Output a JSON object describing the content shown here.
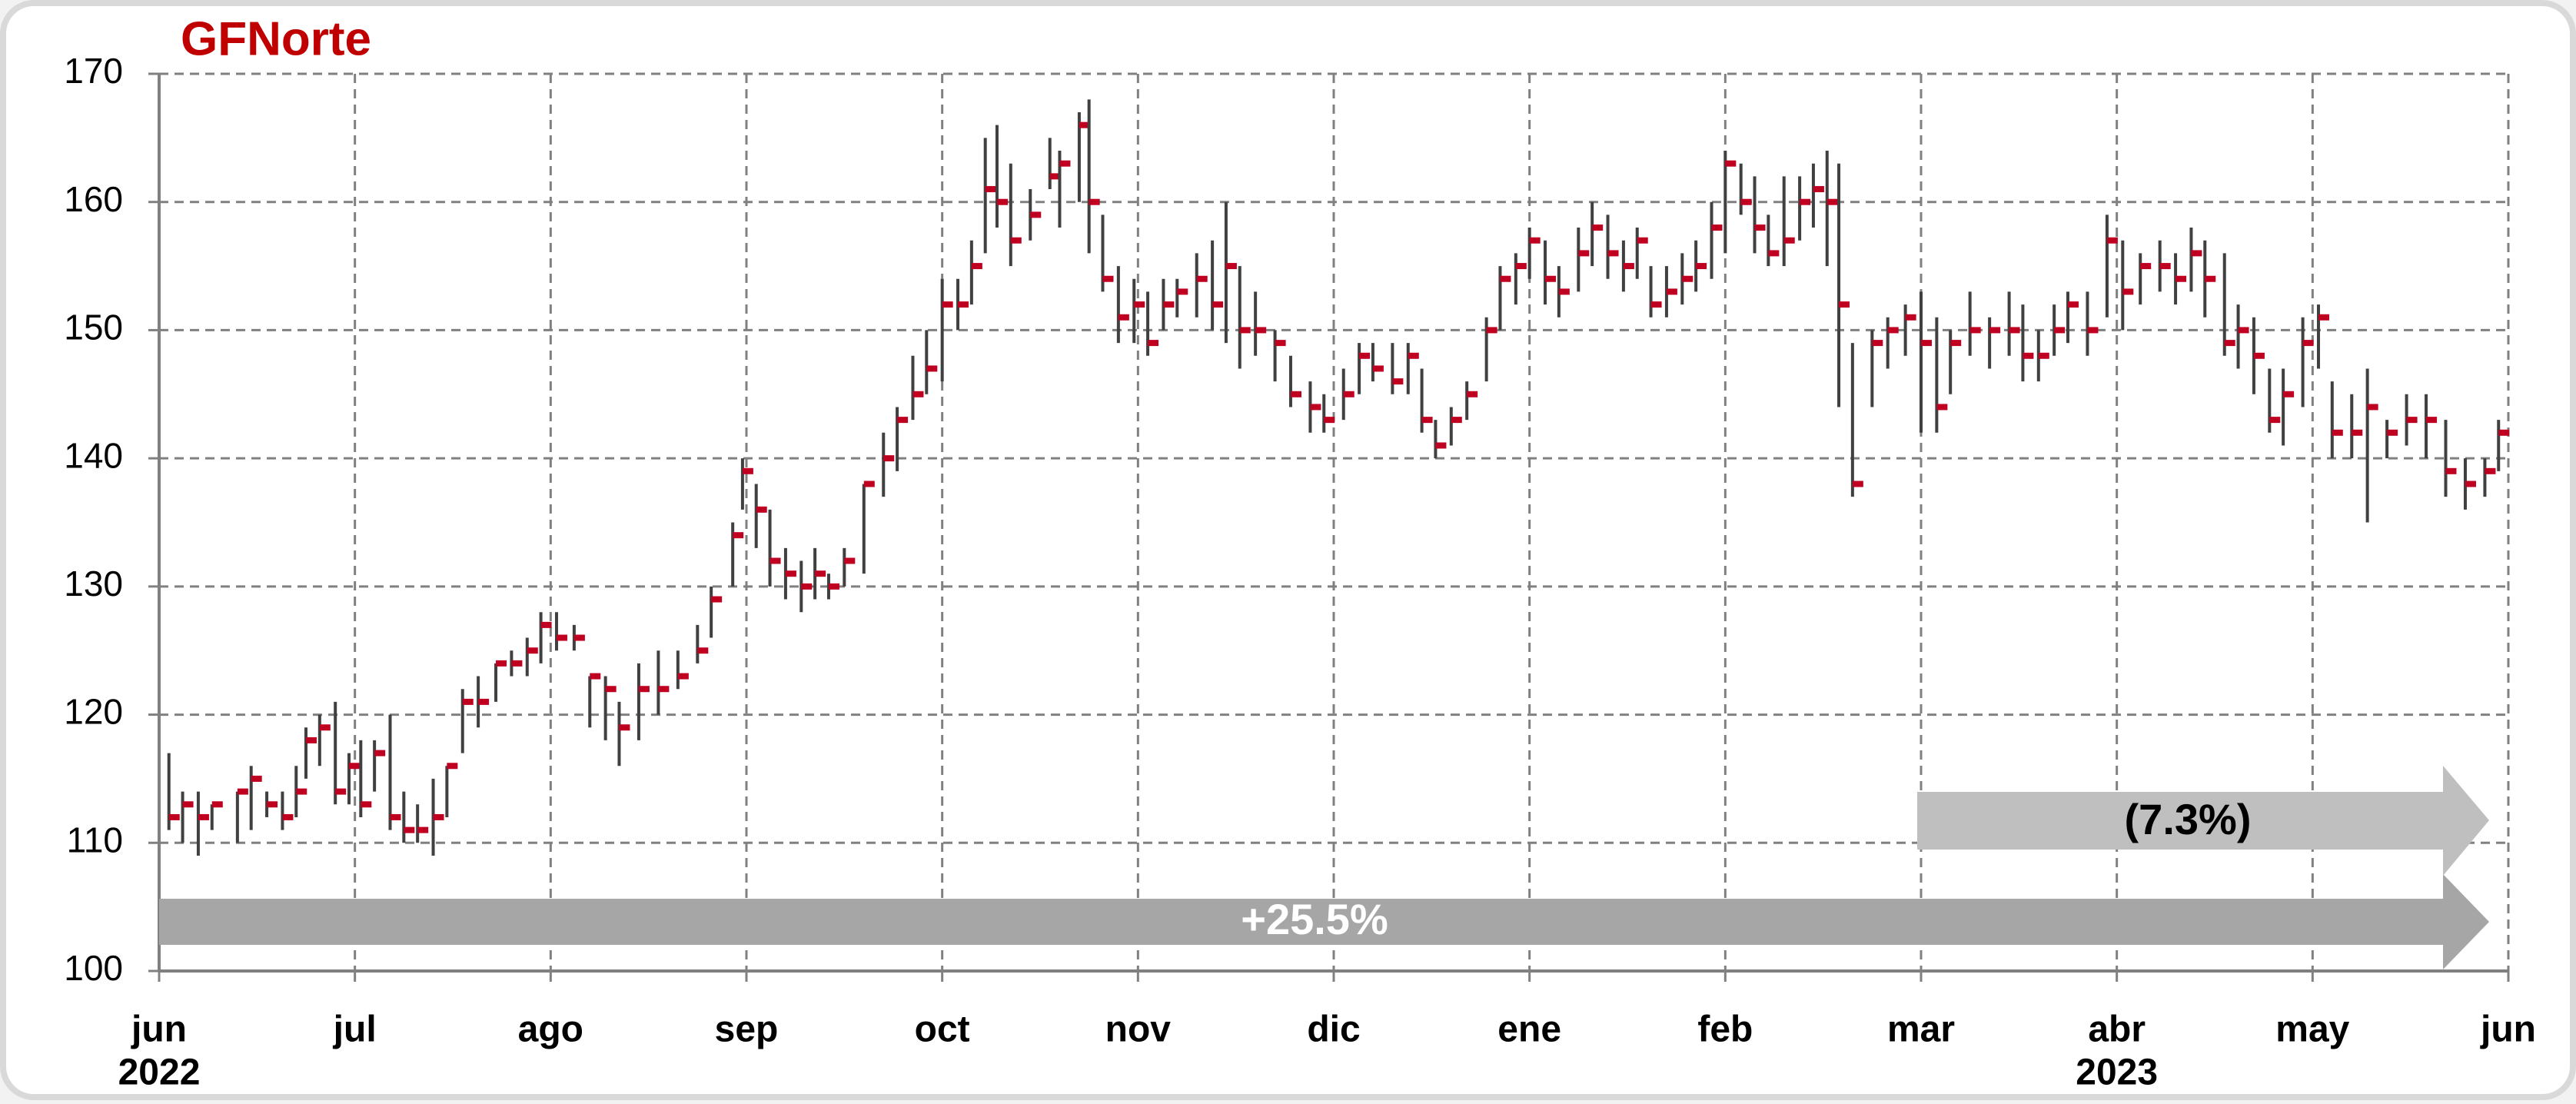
{
  "chart_data": {
    "type": "ohlc",
    "title": "GFNorte",
    "x": [
      0.05,
      0.12,
      0.2,
      0.27,
      0.4,
      0.47,
      0.55,
      0.63,
      0.7,
      0.75,
      0.82,
      0.9,
      0.97,
      1.03,
      1.1,
      1.18,
      1.25,
      1.32,
      1.4,
      1.47,
      1.55,
      1.63,
      1.72,
      1.8,
      1.88,
      1.95,
      2.03,
      2.12,
      2.2,
      2.28,
      2.35,
      2.45,
      2.55,
      2.65,
      2.75,
      2.82,
      2.93,
      2.98,
      3.05,
      3.12,
      3.2,
      3.28,
      3.35,
      3.42,
      3.5,
      3.6,
      3.7,
      3.77,
      3.85,
      3.92,
      4.0,
      4.08,
      4.15,
      4.22,
      4.28,
      4.35,
      4.45,
      4.55,
      4.6,
      4.7,
      4.75,
      4.82,
      4.9,
      4.98,
      5.05,
      5.13,
      5.2,
      5.3,
      5.38,
      5.45,
      5.52,
      5.6,
      5.7,
      5.78,
      5.88,
      5.95,
      6.05,
      6.13,
      6.2,
      6.3,
      6.38,
      6.45,
      6.52,
      6.6,
      6.68,
      6.78,
      6.85,
      6.93,
      7.0,
      7.08,
      7.15,
      7.25,
      7.32,
      7.4,
      7.48,
      7.55,
      7.62,
      7.7,
      7.78,
      7.85,
      7.93,
      8.0,
      8.08,
      8.15,
      8.22,
      8.3,
      8.38,
      8.45,
      8.52,
      8.58,
      8.65,
      8.75,
      8.83,
      8.92,
      9.0,
      9.08,
      9.15,
      9.25,
      9.35,
      9.45,
      9.52,
      9.6,
      9.68,
      9.75,
      9.85,
      9.95,
      10.03,
      10.12,
      10.22,
      10.3,
      10.38,
      10.45,
      10.55,
      10.62,
      10.7,
      10.78,
      10.85,
      10.95,
      11.03,
      11.1,
      11.2,
      11.28,
      11.38,
      11.48,
      11.58,
      11.68,
      11.78,
      11.88,
      11.95
    ],
    "high": [
      117,
      114,
      114,
      113,
      114,
      116,
      114,
      114,
      116,
      119,
      120,
      121,
      117,
      118,
      118,
      120,
      114,
      113,
      115,
      116,
      122,
      123,
      124,
      125,
      126,
      128,
      128,
      127,
      123,
      123,
      121,
      124,
      125,
      125,
      127,
      130,
      135,
      140,
      138,
      136,
      133,
      132,
      133,
      131,
      133,
      138,
      142,
      144,
      148,
      150,
      154,
      154,
      157,
      165,
      166,
      163,
      161,
      165,
      164,
      167,
      168,
      159,
      155,
      154,
      153,
      154,
      154,
      156,
      157,
      160,
      155,
      153,
      150,
      148,
      146,
      145,
      147,
      149,
      149,
      149,
      149,
      147,
      143,
      144,
      146,
      151,
      155,
      156,
      158,
      157,
      155,
      158,
      160,
      159,
      157,
      158,
      155,
      155,
      156,
      157,
      160,
      164,
      163,
      162,
      159,
      162,
      162,
      163,
      164,
      163,
      149,
      150,
      151,
      152,
      153,
      151,
      150,
      153,
      151,
      153,
      152,
      150,
      152,
      153,
      153,
      159,
      157,
      156,
      157,
      156,
      158,
      157,
      156,
      152,
      151,
      147,
      147,
      151,
      152,
      146,
      145,
      147,
      143,
      145,
      145,
      143,
      140,
      140,
      143
    ],
    "low": [
      111,
      110,
      109,
      111,
      110,
      111,
      112,
      111,
      112,
      115,
      116,
      113,
      113,
      112,
      114,
      111,
      110,
      110,
      109,
      112,
      117,
      119,
      121,
      123,
      123,
      124,
      125,
      125,
      119,
      118,
      116,
      118,
      120,
      122,
      124,
      126,
      130,
      136,
      133,
      130,
      129,
      128,
      129,
      129,
      130,
      131,
      137,
      139,
      143,
      145,
      146,
      150,
      152,
      156,
      158,
      155,
      157,
      161,
      158,
      160,
      156,
      153,
      149,
      149,
      148,
      150,
      151,
      151,
      150,
      149,
      147,
      148,
      146,
      144,
      142,
      142,
      143,
      145,
      146,
      145,
      145,
      142,
      140,
      141,
      143,
      146,
      150,
      152,
      154,
      152,
      151,
      153,
      155,
      154,
      153,
      154,
      151,
      151,
      152,
      153,
      154,
      156,
      159,
      156,
      155,
      155,
      157,
      158,
      155,
      144,
      137,
      144,
      147,
      148,
      142,
      142,
      145,
      148,
      147,
      148,
      146,
      146,
      148,
      149,
      148,
      151,
      150,
      152,
      153,
      152,
      153,
      151,
      148,
      147,
      145,
      142,
      141,
      144,
      147,
      140,
      140,
      135,
      140,
      141,
      140,
      137,
      136,
      137,
      139
    ],
    "close": [
      112,
      113,
      112,
      113,
      114,
      115,
      113,
      112,
      114,
      118,
      119,
      114,
      116,
      113,
      117,
      112,
      111,
      111,
      112,
      116,
      121,
      121,
      124,
      124,
      125,
      127,
      126,
      126,
      123,
      122,
      119,
      122,
      122,
      123,
      125,
      129,
      134,
      139,
      136,
      132,
      131,
      130,
      131,
      130,
      132,
      138,
      140,
      143,
      145,
      147,
      152,
      152,
      155,
      161,
      160,
      157,
      159,
      162,
      163,
      166,
      160,
      154,
      151,
      152,
      149,
      152,
      153,
      154,
      152,
      155,
      150,
      150,
      149,
      145,
      144,
      143,
      145,
      148,
      147,
      146,
      148,
      143,
      141,
      143,
      145,
      150,
      154,
      155,
      157,
      154,
      153,
      156,
      158,
      156,
      155,
      157,
      152,
      153,
      154,
      155,
      158,
      163,
      160,
      158,
      156,
      157,
      160,
      161,
      160,
      152,
      138,
      149,
      150,
      151,
      149,
      144,
      149,
      150,
      150,
      150,
      148,
      148,
      150,
      152,
      150,
      157,
      153,
      155,
      155,
      154,
      156,
      154,
      149,
      150,
      148,
      143,
      145,
      149,
      151,
      142,
      142,
      144,
      142,
      143,
      143,
      139,
      138,
      139,
      142
    ],
    "bar_color": "#404040",
    "close_color": "#c00020",
    "xlim": [
      0,
      12
    ],
    "xticks": [
      {
        "value": 0,
        "label": "jun"
      },
      {
        "value": 1,
        "label": "jul"
      },
      {
        "value": 2,
        "label": "ago"
      },
      {
        "value": 3,
        "label": "sep"
      },
      {
        "value": 4,
        "label": "oct"
      },
      {
        "value": 5,
        "label": "nov"
      },
      {
        "value": 6,
        "label": "dic"
      },
      {
        "value": 7,
        "label": "ene"
      },
      {
        "value": 8,
        "label": "feb"
      },
      {
        "value": 9,
        "label": "mar"
      },
      {
        "value": 10,
        "label": "abr"
      },
      {
        "value": 11,
        "label": "may"
      },
      {
        "value": 12,
        "label": "jun"
      }
    ],
    "xyears": [
      {
        "value": 0,
        "label": "2022"
      },
      {
        "value": 10,
        "label": "2023"
      }
    ],
    "ylim": [
      100,
      170
    ],
    "yticks": [
      100,
      110,
      120,
      130,
      140,
      150,
      160,
      170
    ],
    "grid": true,
    "annotations": [
      "+25.5%",
      "(7.3%)"
    ]
  }
}
